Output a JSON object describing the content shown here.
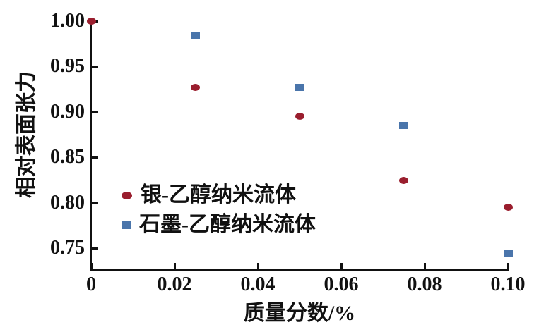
{
  "chart_data": {
    "type": "scatter",
    "title": "",
    "xlabel": "质量分数/%",
    "ylabel": "相对表面张力",
    "xlim": [
      0,
      0.1
    ],
    "ylim": [
      0.727,
      1.0
    ],
    "grid": false,
    "legend_position": "inside-left-middle",
    "x_ticks": [
      0,
      0.02,
      0.04,
      0.06,
      0.08,
      0.1
    ],
    "x_tick_labels": [
      "0",
      "0.02",
      "0.04",
      "0.06",
      "0.08",
      "0.10"
    ],
    "y_ticks": [
      0.75,
      0.8,
      0.85,
      0.9,
      0.95,
      1.0
    ],
    "y_tick_labels": [
      "0.75",
      "0.80",
      "0.85",
      "0.90",
      "0.95",
      "1.00"
    ],
    "series": [
      {
        "name": "银-乙醇纳米流体",
        "marker": "circle",
        "color": "#9a1e2e",
        "points": [
          [
            0,
            1.0
          ],
          [
            0.025,
            0.927
          ],
          [
            0.05,
            0.895
          ],
          [
            0.075,
            0.825
          ],
          [
            0.1,
            0.795
          ]
        ]
      },
      {
        "name": "石墨-乙醇纳米流体",
        "marker": "square",
        "color": "#4a75ab",
        "points": [
          [
            0.025,
            0.984
          ],
          [
            0.05,
            0.927
          ],
          [
            0.075,
            0.885
          ],
          [
            0.1,
            0.745
          ]
        ]
      }
    ],
    "colors": {
      "axis": "#111111",
      "background": "#ffffff",
      "series_silver_ethanol": "#9a1e2e",
      "series_graphite_ethanol": "#4a75ab"
    }
  }
}
